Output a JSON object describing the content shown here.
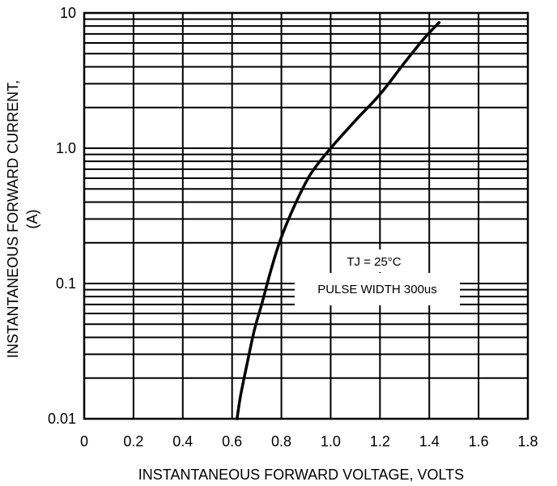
{
  "chart_data": {
    "type": "line",
    "title": "",
    "xlabel": "INSTANTANEOUS FORWARD VOLTAGE, VOLTS",
    "ylabel_line1": "INSTANTANEOUS FORWARD CURRENT,",
    "ylabel_line2": "(A)",
    "xlim": [
      0,
      1.8
    ],
    "ylim": [
      0.01,
      10
    ],
    "yscale": "log",
    "grid": true,
    "x_ticks": [
      0,
      0.2,
      0.4,
      0.6,
      0.8,
      1.0,
      1.2,
      1.4,
      1.6,
      1.8
    ],
    "x_tick_labels": [
      "0",
      "0.2",
      "0.4",
      "0.6",
      "0.8",
      "1.0",
      "1.2",
      "1.4",
      "1.6",
      "1.8"
    ],
    "y_ticks": [
      0.01,
      0.1,
      1.0,
      10
    ],
    "y_tick_labels": [
      "0.01",
      "0.1",
      "1.0",
      "10"
    ],
    "annotations": [
      "TJ = 25°C",
      "PULSE WIDTH 300us"
    ],
    "series": [
      {
        "x": [
          0.62,
          0.635,
          0.66,
          0.69,
          0.72,
          0.76,
          0.8,
          0.86,
          0.92,
          1.0,
          1.1,
          1.2,
          1.3,
          1.38,
          1.44
        ],
        "y": [
          0.01,
          0.015,
          0.025,
          0.045,
          0.07,
          0.13,
          0.22,
          0.4,
          0.65,
          1.0,
          1.6,
          2.5,
          4.3,
          6.5,
          8.5
        ]
      }
    ]
  }
}
